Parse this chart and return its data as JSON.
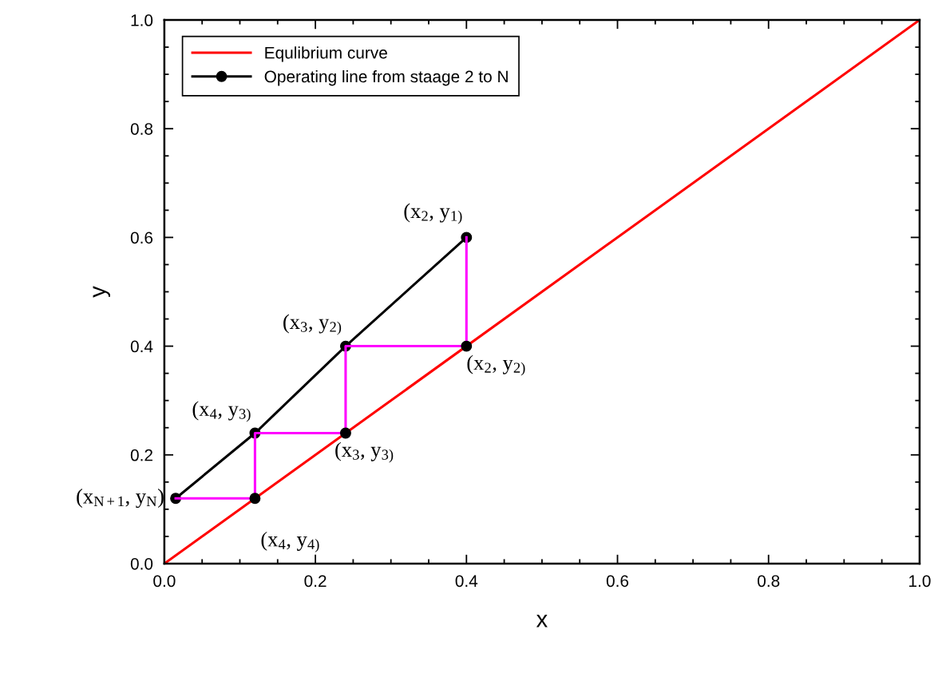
{
  "chart_data": {
    "type": "line",
    "xlabel": "x",
    "ylabel": "y",
    "xlim": [
      0,
      1
    ],
    "ylim": [
      0,
      1
    ],
    "xticks": [
      {
        "value": 0,
        "label": "0.0"
      },
      {
        "value": 0.2,
        "label": "0.2"
      },
      {
        "value": 0.4,
        "label": "0.4"
      },
      {
        "value": 0.6,
        "label": "0.6"
      },
      {
        "value": 0.8,
        "label": "0.8"
      },
      {
        "value": 1,
        "label": "1.0"
      }
    ],
    "yticks": [
      {
        "value": 0,
        "label": "0.0"
      },
      {
        "value": 0.2,
        "label": "0.2"
      },
      {
        "value": 0.4,
        "label": "0.4"
      },
      {
        "value": 0.6,
        "label": "0.6"
      },
      {
        "value": 0.8,
        "label": "0.8"
      },
      {
        "value": 1,
        "label": "1.0"
      }
    ],
    "grid": false,
    "legend": "top left",
    "series": [
      {
        "name": "Equlibrium curve",
        "color": "#ff0000",
        "marker": "none",
        "x": [
          0,
          1
        ],
        "values": [
          0,
          1
        ]
      },
      {
        "name": "Operating line from staage 2 to N",
        "color": "#000000",
        "marker": "circle",
        "x": [
          0.4,
          0.24,
          0.12,
          0.015
        ],
        "values": [
          0.6,
          0.4,
          0.24,
          0.12
        ]
      },
      {
        "color": "#ff00ff",
        "marker": "none",
        "x": [
          0.4,
          0.4,
          0.24,
          0.24,
          0.12,
          0.12,
          0.015
        ],
        "values": [
          0.6,
          0.4,
          0.4,
          0.24,
          0.24,
          0.12,
          0.12
        ]
      },
      {
        "type": "scatter",
        "color": "#000000",
        "marker": "circle",
        "x": [
          0.4,
          0.24,
          0.12
        ],
        "values": [
          0.4,
          0.24,
          0.12
        ]
      }
    ],
    "annotations": [
      {
        "text": "(x$_{2}$, y$_{1)}$",
        "x": 0.4,
        "y": 0.6
      },
      {
        "text": "(x$_{3}$, y$_{2)}$",
        "x": 0.24,
        "y": 0.4
      },
      {
        "text": "(x$_{2}$, y$_{2)}$",
        "x": 0.4,
        "y": 0.4
      },
      {
        "text": "(x$_{4}$, y$_{3)}$",
        "x": 0.12,
        "y": 0.24
      },
      {
        "text": "(x$_{3}$, y$_{3)}$",
        "x": 0.24,
        "y": 0.24
      },
      {
        "text": "(x$_{N+1}$, y$_{N}$)",
        "x": 0.015,
        "y": 0.12
      },
      {
        "text": "(x$_{4}$, y$_{4)}$",
        "x": 0.12,
        "y": 0.12
      }
    ]
  }
}
